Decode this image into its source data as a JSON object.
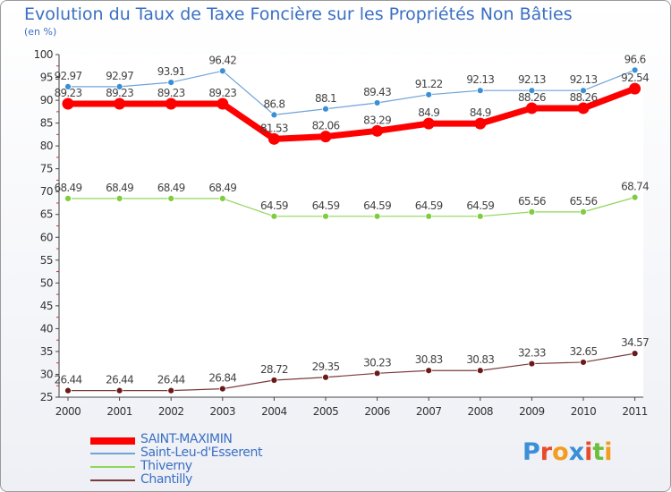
{
  "title": "Evolution du Taux de Taxe Foncière sur les Propriétés Non Bâties",
  "unit": "(en %)",
  "logo": {
    "letters": [
      "P",
      "r",
      "o",
      "x",
      "i",
      "t",
      "i"
    ],
    "colors": [
      "#3b8fd6",
      "#e84b2c",
      "#f39c1e",
      "#3b8fd6",
      "#e84b2c",
      "#6bbf3a",
      "#f39c1e"
    ]
  },
  "chart_data": {
    "type": "line",
    "x": [
      "2000",
      "2001",
      "2002",
      "2003",
      "2004",
      "2005",
      "2006",
      "2007",
      "2008",
      "2009",
      "2010",
      "2011"
    ],
    "ylim": [
      25,
      100
    ],
    "yticks": [
      "25",
      "30",
      "35",
      "40",
      "45",
      "50",
      "55",
      "60",
      "65",
      "70",
      "75",
      "80",
      "85",
      "90",
      "95",
      "100"
    ],
    "grid": false,
    "legend_position": "bottom-left",
    "series": [
      {
        "name": "SAINT-MAXIMIN",
        "color": "#ff0000",
        "values": [
          89.23,
          89.23,
          89.23,
          89.23,
          81.53,
          82.06,
          83.29,
          84.9,
          84.9,
          88.26,
          88.26,
          92.54
        ],
        "labels": [
          "89.23",
          "89.23",
          "89.23",
          "89.23",
          "81.53",
          "82.06",
          "83.29",
          "84.9",
          "84.9",
          "88.26",
          "88.26",
          "92.54"
        ]
      },
      {
        "name": "Saint-Leu-d'Esserent",
        "color": "#6fa3d8",
        "values": [
          92.97,
          92.97,
          93.91,
          96.42,
          86.8,
          88.1,
          89.43,
          91.22,
          92.13,
          92.13,
          92.13,
          96.6
        ],
        "labels": [
          "92.97",
          "92.97",
          "93.91",
          "96.42",
          "86.8",
          "88.1",
          "89.43",
          "91.22",
          "92.13",
          "92.13",
          "92.13",
          "96.6"
        ]
      },
      {
        "name": "Thiverny",
        "color": "#8fd65a",
        "values": [
          68.49,
          68.49,
          68.49,
          68.49,
          64.59,
          64.59,
          64.59,
          64.59,
          64.59,
          65.56,
          65.56,
          68.74
        ],
        "labels": [
          "68.49",
          "68.49",
          "68.49",
          "68.49",
          "64.59",
          "64.59",
          "64.59",
          "64.59",
          "64.59",
          "65.56",
          "65.56",
          "68.74"
        ]
      },
      {
        "name": "Chantilly",
        "color": "#7a3b3b",
        "values": [
          26.44,
          26.44,
          26.44,
          26.84,
          28.72,
          29.35,
          30.23,
          30.83,
          30.83,
          32.33,
          32.65,
          34.57
        ],
        "labels": [
          "26.44",
          "26.44",
          "26.44",
          "26.84",
          "28.72",
          "29.35",
          "30.23",
          "30.83",
          "30.83",
          "32.33",
          "32.65",
          "34.57"
        ]
      }
    ]
  }
}
